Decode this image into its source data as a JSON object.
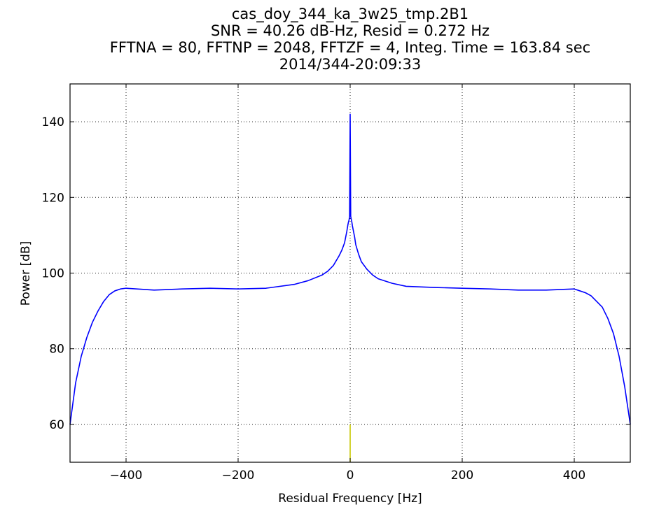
{
  "chart_data": {
    "type": "line",
    "title_lines": [
      "cas_doy_344_ka_3w25_tmp.2B1",
      "SNR = 40.26 dB-Hz, Resid = 0.272 Hz",
      "FFTNA = 80, FFTNP = 2048, FFTZF = 4, Integ. Time = 163.84 sec",
      "2014/344-20:09:33"
    ],
    "xlabel": "Residual Frequency [Hz]",
    "ylabel": "Power [dB]",
    "xlim": [
      -500,
      500
    ],
    "ylim": [
      50,
      150
    ],
    "xticks": [
      -400,
      -200,
      0,
      200,
      400
    ],
    "xtick_labels": [
      "−400",
      "−200",
      "0",
      "200",
      "400"
    ],
    "yticks": [
      60,
      80,
      100,
      120,
      140
    ],
    "ytick_labels": [
      "60",
      "80",
      "100",
      "120",
      "140"
    ],
    "grid": true,
    "series": [
      {
        "color": "#0000ff",
        "x": [
          -500,
          -490,
          -480,
          -470,
          -460,
          -450,
          -440,
          -430,
          -420,
          -410,
          -400,
          -350,
          -300,
          -250,
          -200,
          -150,
          -100,
          -75,
          -50,
          -40,
          -30,
          -20,
          -15,
          -10,
          -8,
          -6,
          -4,
          -3,
          -2,
          -1,
          0,
          1,
          2,
          3,
          4,
          6,
          8,
          10,
          15,
          20,
          30,
          40,
          50,
          75,
          100,
          150,
          200,
          250,
          300,
          350,
          400,
          410,
          420,
          430,
          440,
          450,
          460,
          470,
          480,
          490,
          500
        ],
        "y": [
          60,
          71,
          78,
          83,
          87,
          90,
          92.5,
          94.3,
          95.3,
          95.8,
          96,
          95.5,
          95.8,
          96,
          95.8,
          96,
          97,
          98,
          99.5,
          100.5,
          102,
          104.5,
          106,
          108,
          109.5,
          111,
          112.8,
          113.5,
          114,
          115,
          142,
          115,
          114.2,
          113.5,
          112.5,
          111,
          109.5,
          107.5,
          105,
          103,
          101,
          99.5,
          98.5,
          97.3,
          96.5,
          96.2,
          96,
          95.8,
          95.5,
          95.5,
          95.8,
          95.3,
          94.8,
          94,
          92.5,
          91,
          88,
          84,
          78,
          70,
          60
        ]
      },
      {
        "color": "#c8c800",
        "x": [
          0,
          0
        ],
        "y": [
          50,
          60
        ]
      }
    ]
  }
}
